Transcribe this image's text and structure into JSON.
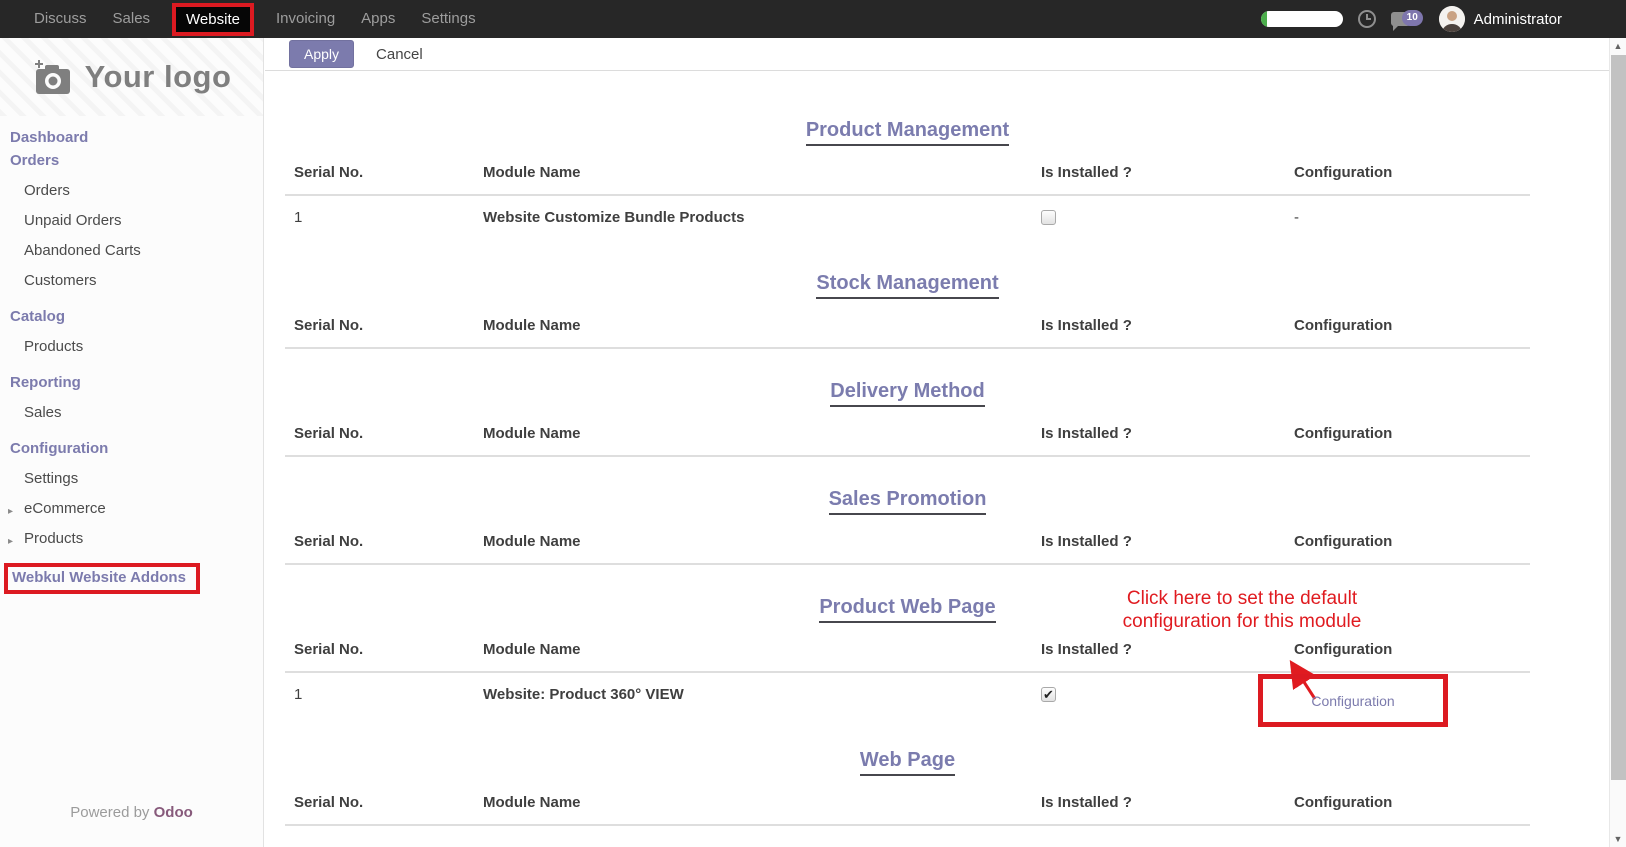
{
  "topbar": {
    "menu_items": [
      {
        "label": "Discuss"
      },
      {
        "label": "Sales"
      },
      {
        "label": "Website",
        "active": true,
        "annotated": true
      },
      {
        "label": "Invoicing"
      },
      {
        "label": "Apps"
      },
      {
        "label": "Settings"
      }
    ],
    "planner_progress_percent": 8,
    "messages_badge": "10",
    "user_name": "Administrator"
  },
  "sidebar": {
    "logo_text": "Your logo",
    "items": [
      {
        "label": "Dashboard",
        "type": "heading"
      },
      {
        "label": "Orders",
        "type": "heading"
      },
      {
        "label": "Orders",
        "type": "link"
      },
      {
        "label": "Unpaid Orders",
        "type": "link"
      },
      {
        "label": "Abandoned Carts",
        "type": "link"
      },
      {
        "label": "Customers",
        "type": "link"
      },
      {
        "label": "Catalog",
        "type": "heading"
      },
      {
        "label": "Products",
        "type": "link"
      },
      {
        "label": "Reporting",
        "type": "heading"
      },
      {
        "label": "Sales",
        "type": "link"
      },
      {
        "label": "Configuration",
        "type": "heading"
      },
      {
        "label": "Settings",
        "type": "link"
      },
      {
        "label": "eCommerce",
        "type": "link",
        "caret": true
      },
      {
        "label": "Products",
        "type": "link",
        "caret": true
      },
      {
        "label": "Webkul Website Addons",
        "type": "heading",
        "annotated": true
      }
    ],
    "footer": {
      "powered_by": "Powered by",
      "brand": "Odoo"
    }
  },
  "content": {
    "toolbar": {
      "apply": "Apply",
      "cancel": "Cancel"
    },
    "table_headers": [
      "Serial No.",
      "Module Name",
      "Is Installed ?",
      "Configuration"
    ],
    "sections": [
      {
        "title": "Product Management",
        "rows": [
          {
            "serial": "1",
            "module": "Website Customize Bundle Products",
            "installed": false,
            "configuration": "-"
          }
        ]
      },
      {
        "title": "Stock Management",
        "rows": []
      },
      {
        "title": "Delivery Method",
        "rows": []
      },
      {
        "title": "Sales Promotion",
        "rows": []
      },
      {
        "title": "Product Web Page",
        "annotated": true,
        "rows": [
          {
            "serial": "1",
            "module": "Website: Product 360° VIEW",
            "installed": true,
            "configuration": "Configuration",
            "configuration_is_link": true,
            "config_annotated": true
          }
        ]
      },
      {
        "title": "Web Page",
        "rows": []
      }
    ],
    "annotation": {
      "lines": [
        "Click here to set the default",
        "configuration for this module"
      ]
    }
  },
  "colors": {
    "accent_purple": "#7c7bad",
    "annotation_red": "#dc1a21",
    "odoo_brand": "#875a7b",
    "progress_green": "#4cae4c"
  }
}
